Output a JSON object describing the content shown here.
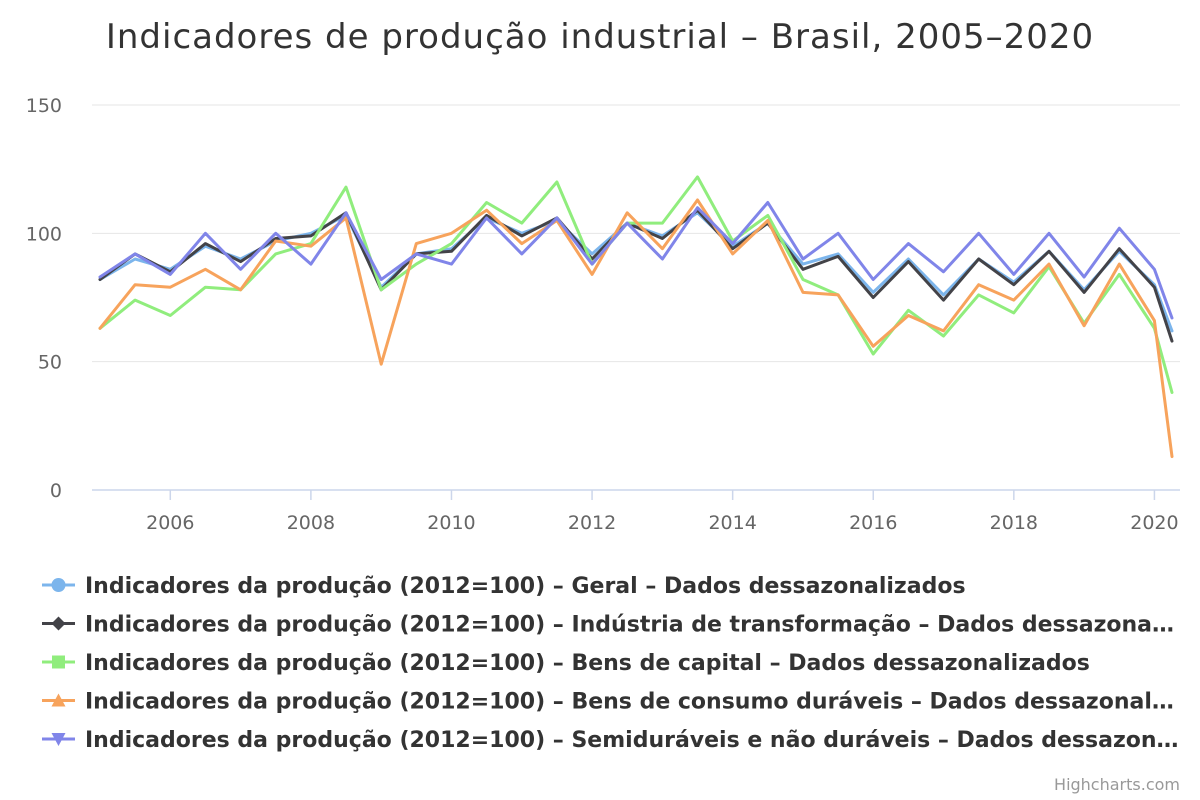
{
  "chart_data": {
    "type": "line",
    "title": "Indicadores de produção industrial – Brasil, 2005–2020",
    "xlabel": "",
    "ylabel": "",
    "x_ticks": [
      "2006",
      "2008",
      "2010",
      "2012",
      "2014",
      "2016",
      "2018",
      "2020"
    ],
    "y_ticks": [
      "0",
      "50",
      "100",
      "150"
    ],
    "ylim": [
      0,
      150
    ],
    "xlim": [
      "2005-01",
      "2020-04"
    ],
    "grid": true,
    "legend_position": "bottom",
    "x": [
      "2005-01",
      "2005-07",
      "2006-01",
      "2006-07",
      "2007-01",
      "2007-07",
      "2008-01",
      "2008-07",
      "2009-01",
      "2009-07",
      "2010-01",
      "2010-07",
      "2011-01",
      "2011-07",
      "2012-01",
      "2012-07",
      "2013-01",
      "2013-07",
      "2014-01",
      "2014-07",
      "2015-01",
      "2015-07",
      "2016-01",
      "2016-07",
      "2017-01",
      "2017-07",
      "2018-01",
      "2018-07",
      "2019-01",
      "2019-07",
      "2020-01",
      "2020-04"
    ],
    "series": [
      {
        "name": "Indicadores da produção (2012=100) – Geral – Dados dessazonalizados",
        "color": "#7cb5ec",
        "marker": "circle",
        "values": [
          82,
          90,
          86,
          95,
          90,
          97,
          100,
          107,
          79,
          92,
          94,
          106,
          100,
          105,
          92,
          104,
          99,
          108,
          95,
          104,
          88,
          92,
          77,
          90,
          76,
          90,
          81,
          93,
          78,
          93,
          80,
          62
        ]
      },
      {
        "name": "Indicadores da produção (2012=100) – Indústria de transformação – Dados dessazonalizados",
        "color": "#434348",
        "marker": "diamond",
        "values": [
          82,
          92,
          85,
          96,
          89,
          98,
          99,
          108,
          78,
          92,
          93,
          107,
          99,
          106,
          90,
          104,
          98,
          109,
          94,
          104,
          86,
          91,
          75,
          89,
          74,
          90,
          80,
          93,
          77,
          94,
          79,
          58
        ]
      },
      {
        "name": "Indicadores da produção (2012=100) – Bens de capital – Dados dessazonalizados",
        "color": "#90ed7d",
        "marker": "square",
        "values": [
          63,
          74,
          68,
          79,
          78,
          92,
          96,
          118,
          78,
          88,
          96,
          112,
          104,
          120,
          88,
          104,
          104,
          122,
          97,
          107,
          82,
          76,
          53,
          70,
          60,
          76,
          69,
          87,
          65,
          84,
          63,
          38
        ]
      },
      {
        "name": "Indicadores da produção (2012=100) – Bens de consumo duráveis – Dados dessazonalizados",
        "color": "#f7a35c",
        "marker": "triangle",
        "values": [
          63,
          80,
          79,
          86,
          78,
          97,
          95,
          106,
          49,
          96,
          100,
          109,
          96,
          105,
          84,
          108,
          94,
          113,
          92,
          105,
          77,
          76,
          56,
          68,
          62,
          80,
          74,
          88,
          64,
          88,
          66,
          13
        ]
      },
      {
        "name": "Indicadores da produção (2012=100) – Semiduráveis e não duráveis – Dados dessazonalizados",
        "color": "#8085e9",
        "marker": "triangle-down",
        "values": [
          83,
          92,
          84,
          100,
          86,
          100,
          88,
          108,
          82,
          92,
          88,
          106,
          92,
          106,
          88,
          104,
          90,
          110,
          96,
          112,
          90,
          100,
          82,
          96,
          85,
          100,
          84,
          100,
          83,
          102,
          86,
          67
        ]
      }
    ]
  },
  "legend_display": [
    "Indicadores da produção (2012=100) – Geral – Dados dessazonalizados",
    "Indicadores da produção (2012=100) – Indústria de transformação – Dados dessazona…",
    "Indicadores da produção (2012=100) – Bens de capital – Dados dessazonalizados",
    "Indicadores da produção (2012=100) – Bens de consumo duráveis – Dados dessazonal…",
    "Indicadores da produção (2012=100) – Semiduráveis e não duráveis – Dados dessazon…"
  ],
  "credits": "Highcharts.com"
}
